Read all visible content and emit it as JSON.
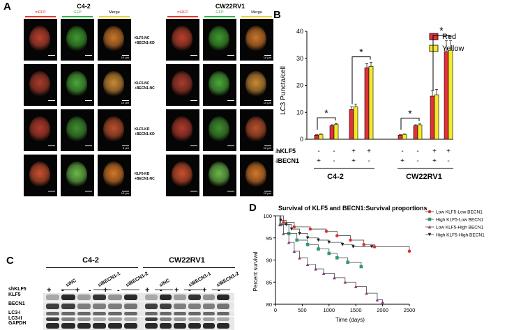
{
  "panel_labels": [
    "A",
    "B",
    "C",
    "D"
  ],
  "panel_a": {
    "cell_lines": [
      "C4-2",
      "CW22RV1"
    ],
    "channels": [
      {
        "label": "mRFP",
        "color": "#e03a2a"
      },
      {
        "label": "GFP",
        "color": "#36b24a"
      },
      {
        "label": "Merge",
        "color": "#e8d23a"
      }
    ],
    "conditions": [
      {
        "line1": "KLF5-NC",
        "line2": "+BECN1-KD"
      },
      {
        "line1": "KLF5-NC",
        "line2": "+BECN1-NC"
      },
      {
        "line1": "KLF5-KD",
        "line2": "+BECN1-KD"
      },
      {
        "line1": "KLF5-KD",
        "line2": "+BECN1-NC"
      }
    ],
    "scale_bars": {
      "c42": [
        "10 μm",
        "10 μm",
        "5 μm",
        "10 μm"
      ],
      "cw": [
        "10 μm",
        "10 μm",
        "10 μm",
        "10 μm"
      ]
    }
  },
  "panel_b": {
    "chart_data": {
      "type": "bar",
      "ylabel": "LC3 Puncta/cell",
      "ylim": [
        0,
        40
      ],
      "yticks": [
        0,
        10,
        20,
        30,
        40
      ],
      "groups": [
        "C4-2",
        "CW22RV1"
      ],
      "row_labels": [
        "shKLF5",
        "siBECN1"
      ],
      "shKLF5": [
        "-",
        "-",
        "+",
        "+",
        "-",
        "-",
        "+",
        "+"
      ],
      "siBECN1": [
        "+",
        "-",
        "+",
        "-",
        "+",
        "-",
        "+",
        "-"
      ],
      "series": [
        {
          "name": "Red",
          "color": "#e0303a",
          "values": [
            1.5,
            5,
            11,
            26.5,
            1.5,
            5,
            16,
            32.5
          ],
          "errors": [
            0.2,
            0.4,
            1,
            1.5,
            0.2,
            0.4,
            2,
            4
          ]
        },
        {
          "name": "Yellow",
          "color": "#f2ea2a",
          "values": [
            1.8,
            5.5,
            12,
            27,
            1.8,
            5.3,
            16.5,
            33
          ],
          "errors": [
            0.2,
            0.4,
            1,
            1.5,
            0.2,
            0.4,
            2,
            3.5
          ]
        }
      ],
      "significance": [
        "*",
        "*",
        "*",
        "*"
      ]
    }
  },
  "panel_c": {
    "cell_lines": [
      "C4-2",
      "CW22RV1"
    ],
    "groups": [
      "siNC",
      "siBECN1-1",
      "siBECN1-2"
    ],
    "shKLF5_label": "shKLF5",
    "shKLF5_signs": [
      "+",
      "-",
      "+",
      "-",
      "+",
      "-"
    ],
    "rows": [
      "KLF5",
      "BECN1",
      "LC3-I",
      "LC3-II",
      "GAPDH"
    ]
  },
  "panel_d": {
    "chart_data": {
      "type": "line",
      "title": "Survival of KLF5 and BECN1:Survival proportions",
      "xlabel": "Time (days)",
      "ylabel": "Percent survival",
      "xlim": [
        0,
        2500
      ],
      "ylim": [
        80,
        100
      ],
      "xticks": [
        0,
        500,
        1000,
        1500,
        2000,
        2500
      ],
      "yticks": [
        80,
        85,
        90,
        95,
        100
      ],
      "series": [
        {
          "name": "Low KLF5-Low BECN1",
          "color": "#e03030",
          "marker": "circle",
          "x": [
            0,
            150,
            350,
            650,
            950,
            1150,
            1400,
            1650,
            1850,
            2500
          ],
          "y": [
            100,
            98.5,
            97.5,
            97,
            96.5,
            95.5,
            94.5,
            93.5,
            93,
            92
          ]
        },
        {
          "name": "High KLF5-Low BECN1",
          "color": "#2e9a6e",
          "marker": "square",
          "x": [
            0,
            100,
            250,
            400,
            600,
            800,
            1000,
            1150,
            1350,
            1600
          ],
          "y": [
            100,
            98,
            96,
            94.5,
            93.5,
            92.5,
            91.5,
            90.5,
            89.5,
            88.5
          ]
        },
        {
          "name": "Low KLF5-High BECN1",
          "color": "#8a3a7a",
          "marker": "triangle",
          "x": [
            0,
            80,
            150,
            250,
            350,
            450,
            600,
            750,
            900,
            1100,
            1300,
            1500,
            1700,
            1900,
            2000
          ],
          "y": [
            100,
            98,
            96,
            94,
            92,
            90.5,
            89,
            88,
            87,
            86,
            85,
            84,
            82.5,
            81,
            80.5
          ]
        },
        {
          "name": "High KLF5-High BECN1",
          "color": "#222222",
          "marker": "triangle-down",
          "x": [
            0,
            100,
            200,
            300,
            450,
            600,
            800,
            1000,
            1250,
            1450,
            1800
          ],
          "y": [
            100,
            99,
            98,
            97,
            96,
            95,
            94.5,
            94,
            93.5,
            93,
            93
          ]
        }
      ]
    }
  }
}
